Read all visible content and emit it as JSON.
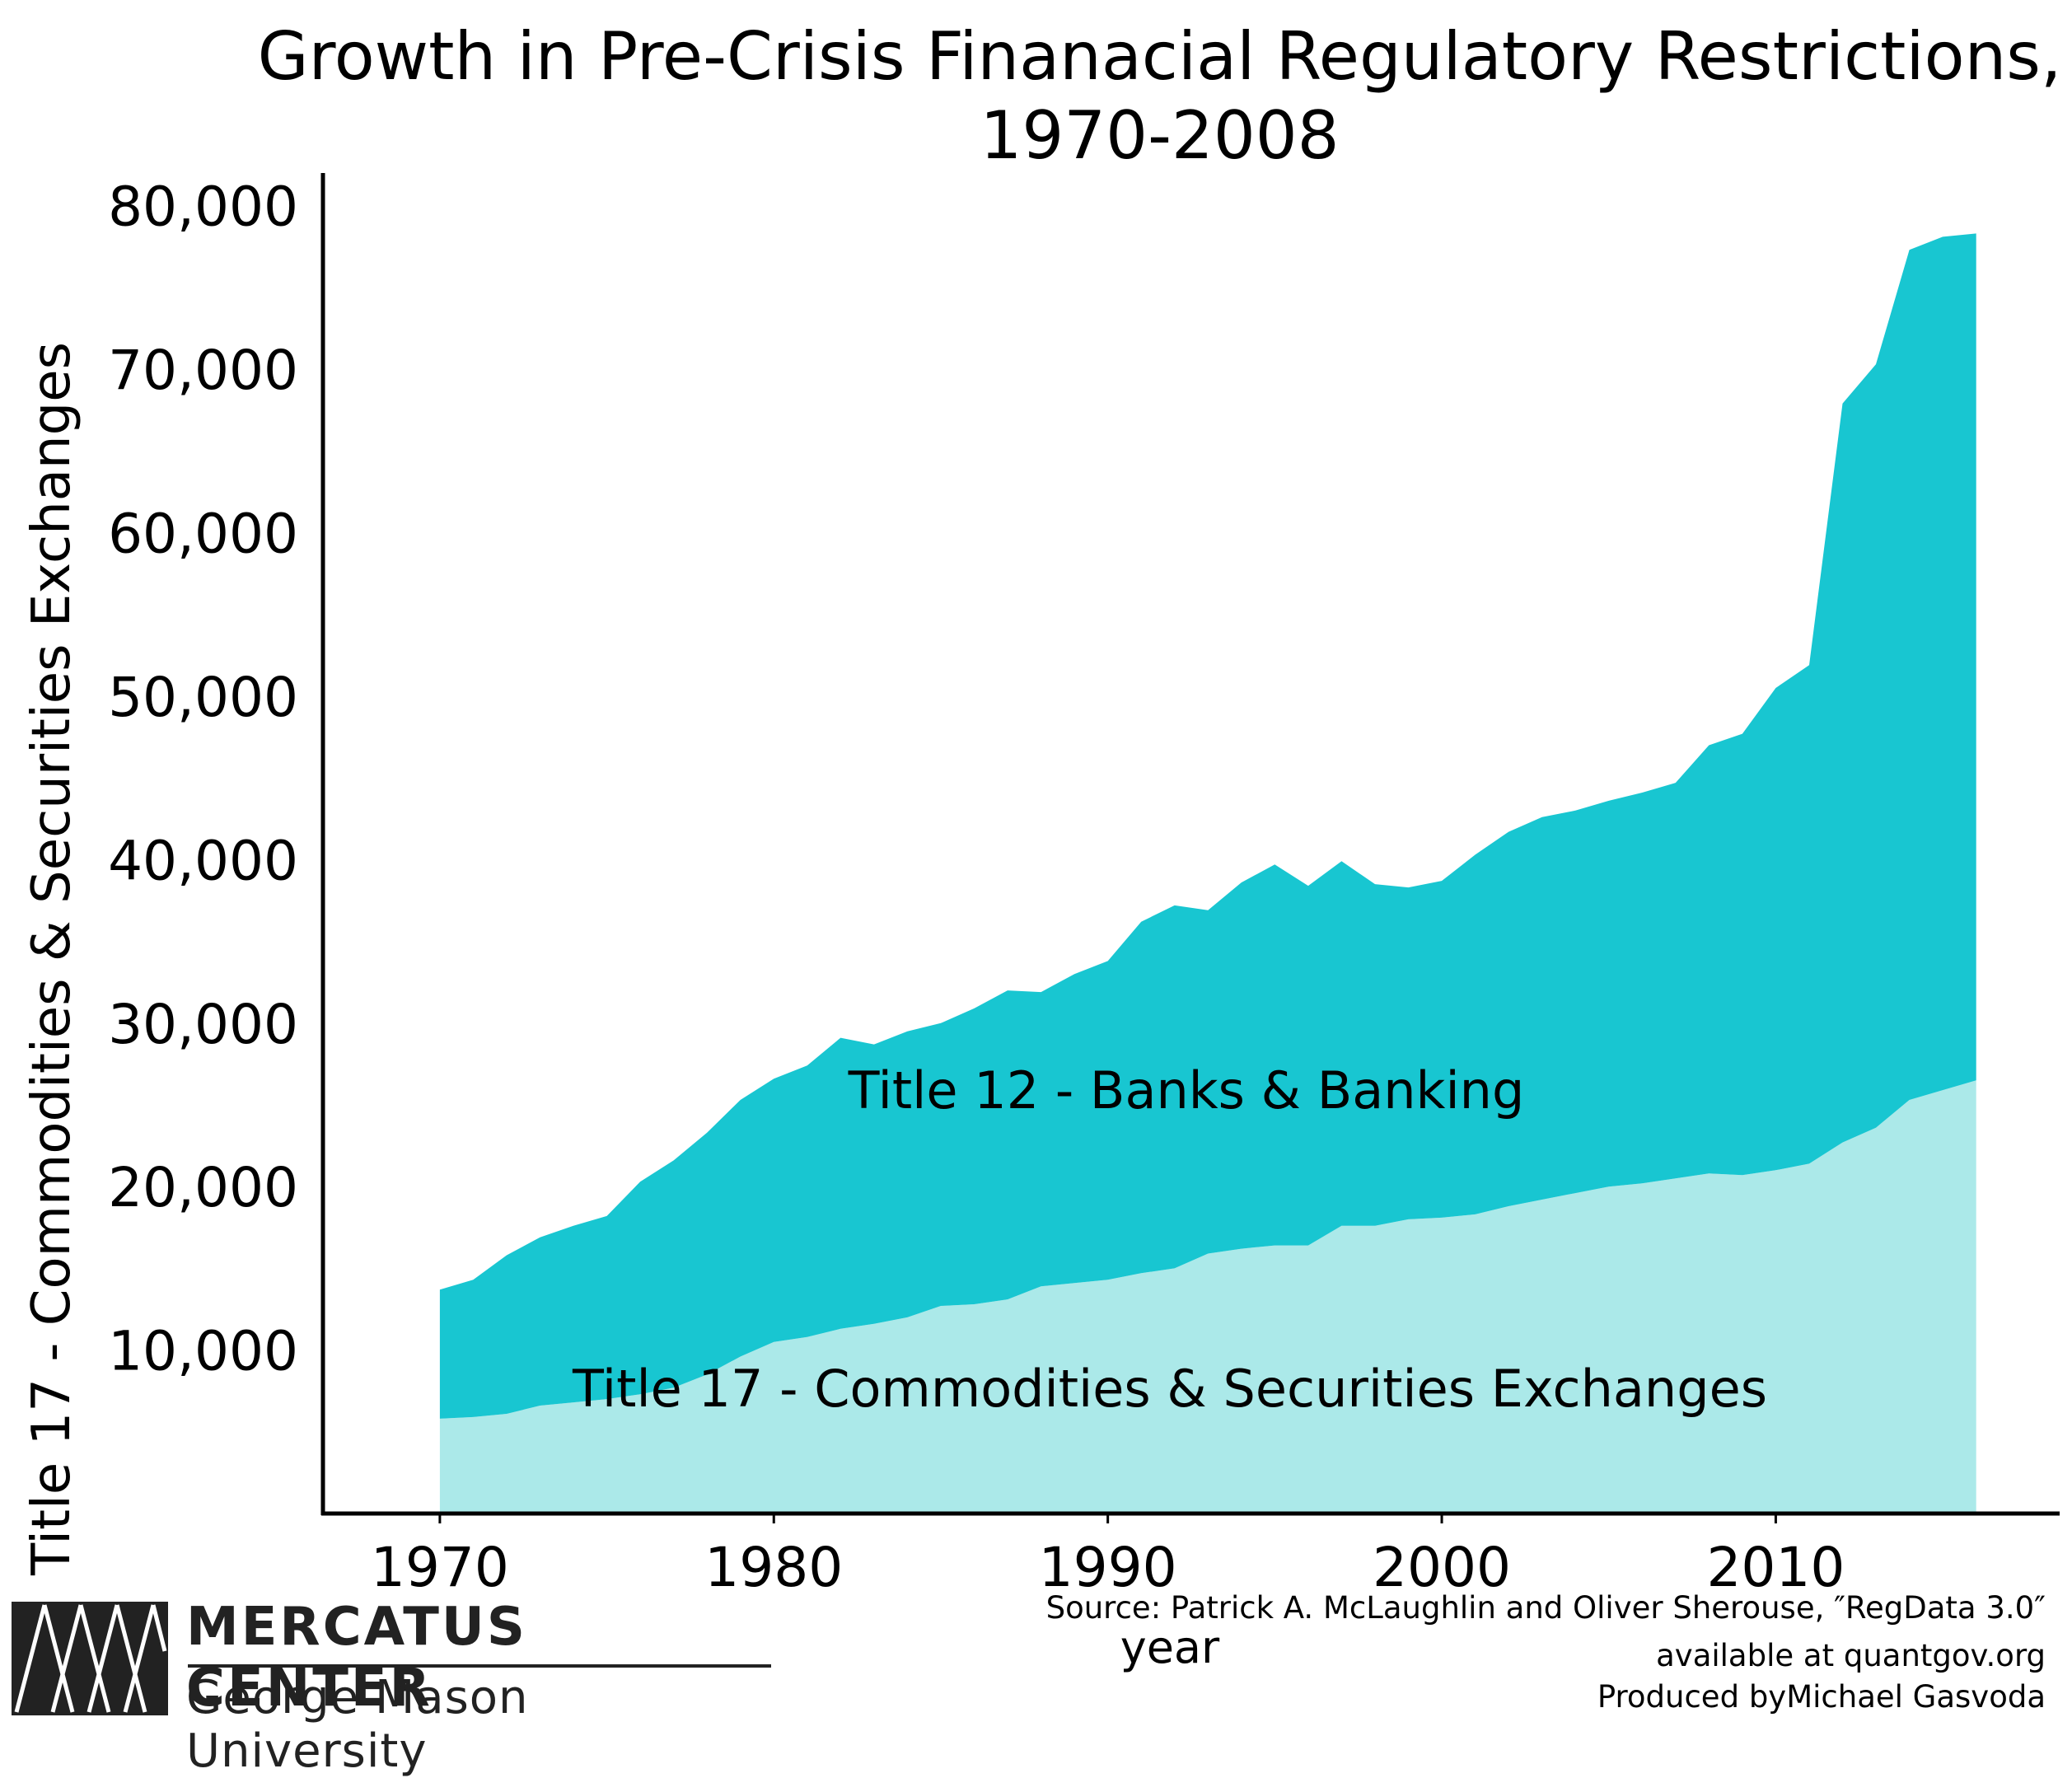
{
  "chart_data": {
    "type": "area",
    "stacked": true,
    "title": "Growth in Pre-Crisis Finanacial Regulatory Restrictions,",
    "title_line2": "1970-2008",
    "xlabel": "year",
    "ylabel": "Title 17 - Commodities & Securities Exchanges",
    "xlim": [
      1966.5,
      2018.5
    ],
    "ylim": [
      0,
      82000
    ],
    "xticks": [
      1970,
      1980,
      1990,
      2000,
      2010
    ],
    "yticks": [
      10000,
      20000,
      30000,
      40000,
      50000,
      60000,
      70000,
      80000
    ],
    "ytick_labels": [
      "10,000",
      "20,000",
      "30,000",
      "40,000",
      "50,000",
      "60,000",
      "70,000",
      "80,000"
    ],
    "xtick_labels": [
      "1970",
      "1980",
      "1990",
      "2000",
      "2010"
    ],
    "x": [
      1970,
      1971,
      1972,
      1973,
      1974,
      1975,
      1976,
      1977,
      1978,
      1979,
      1980,
      1981,
      1982,
      1983,
      1984,
      1985,
      1986,
      1987,
      1988,
      1989,
      1990,
      1991,
      1992,
      1993,
      1994,
      1995,
      1996,
      1997,
      1998,
      1999,
      2000,
      2001,
      2002,
      2003,
      2004,
      2005,
      2006,
      2007,
      2008,
      2009,
      2010,
      2011,
      2012,
      2013,
      2014,
      2015,
      2016
    ],
    "series": [
      {
        "name": "Title 17 - Commodities & Securities Exchanges",
        "color": "#abe9e9",
        "values": [
          5800,
          5900,
          6100,
          6600,
          6800,
          7000,
          7300,
          7700,
          8500,
          9600,
          10500,
          10800,
          11300,
          11600,
          12000,
          12700,
          12800,
          13100,
          13900,
          14100,
          14300,
          14700,
          15000,
          15900,
          16200,
          16400,
          16400,
          17600,
          17600,
          18000,
          18100,
          18300,
          18800,
          19200,
          19600,
          20000,
          20200,
          20500,
          20800,
          20700,
          21000,
          21400,
          22700,
          23600,
          25300,
          25900,
          26500
        ]
      },
      {
        "name": "Title 12 - Banks & Banking",
        "color": "#18c6d1",
        "values": [
          7900,
          8400,
          9700,
          10300,
          10800,
          11200,
          13000,
          13900,
          14800,
          15700,
          16100,
          16600,
          17800,
          17100,
          17500,
          17300,
          18100,
          18900,
          18000,
          18900,
          19500,
          21500,
          22200,
          21000,
          22400,
          23300,
          22000,
          22300,
          20900,
          20300,
          20600,
          22000,
          22900,
          23400,
          23400,
          23600,
          23900,
          24200,
          26200,
          27000,
          29500,
          30500,
          45200,
          46700,
          52000,
          52200,
          51800
        ]
      }
    ],
    "annotations": [
      "Title 12 - Banks & Banking",
      "Title 17 - Commodities & Securities Exchanges"
    ],
    "legend": "none",
    "grid": false,
    "axis_color": "#000000"
  },
  "footer": {
    "source_line1": "Source: Patrick A. McLaughlin and Oliver Sherouse, ″RegData 3.0″",
    "source_line2": "available at quantgov.org",
    "source_line3": "Produced byMichael Gasvoda"
  },
  "logo": {
    "name": "MERCATUS CENTER",
    "subtitle": "George Mason University"
  }
}
